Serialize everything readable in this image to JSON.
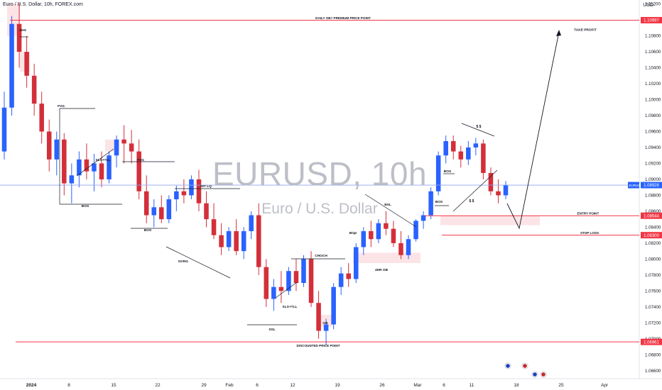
{
  "header": {
    "title": "Euro / U.S. Dollar, 10h, FOREX.com",
    "currency": "USD"
  },
  "watermark": {
    "symbol": "EURUSD, 10h",
    "name": "Euro / U.S. Dollar"
  },
  "colors": {
    "up": "#2962ff",
    "down": "#d32f3a",
    "line": "#f23645",
    "zone": "#fce4e6",
    "current_price_line": "#90a4f2"
  },
  "price_badges": {
    "current": "EURUSD",
    "current_value": "1.08928"
  },
  "chart_data": {
    "type": "candlestick",
    "symbol": "EURUSD",
    "timeframe": "10h",
    "ylim": [
      1.065,
      1.1125
    ],
    "y_ticks": [
      "1.11200",
      "1.11000",
      "1.10800",
      "1.10600",
      "1.10400",
      "1.10200",
      "1.10000",
      "1.09800",
      "1.09600",
      "1.09400",
      "1.09200",
      "1.09000",
      "1.08800",
      "1.08600",
      "1.08400",
      "1.08200",
      "1.08000",
      "1.07800",
      "1.07600",
      "1.07400",
      "1.07200",
      "1.07000",
      "1.06800",
      "1.06600"
    ],
    "x_ticks": [
      "2024",
      "8",
      "15",
      "22",
      "29",
      "Feb",
      "6",
      "12",
      "19",
      "26",
      "Mar",
      "6",
      "11",
      "18",
      "25",
      "Apr"
    ],
    "candles": [
      [
        1.0935,
        1.101,
        1.0925,
        1.099
      ],
      [
        1.099,
        1.1105,
        1.098,
        1.1095
      ],
      [
        1.1095,
        1.1122,
        1.104,
        1.106
      ],
      [
        1.106,
        1.108,
        1.1015,
        1.103
      ],
      [
        1.103,
        1.1045,
        1.098,
        1.0995
      ],
      [
        1.0995,
        1.101,
        1.0945,
        1.096
      ],
      [
        1.096,
        1.0975,
        1.091,
        1.0925
      ],
      [
        1.0925,
        1.096,
        1.0905,
        1.095
      ],
      [
        1.095,
        1.0958,
        1.088,
        1.0895
      ],
      [
        1.0895,
        1.092,
        1.087,
        1.0905
      ],
      [
        1.0905,
        1.0935,
        1.089,
        1.0925
      ],
      [
        1.0925,
        1.0945,
        1.09,
        1.091
      ],
      [
        1.091,
        1.0932,
        1.0885,
        1.092
      ],
      [
        1.092,
        1.0935,
        1.089,
        1.09
      ],
      [
        1.09,
        1.0935,
        1.0895,
        1.093
      ],
      [
        1.093,
        1.0955,
        1.0915,
        1.095
      ],
      [
        1.095,
        1.0968,
        1.092,
        1.0945
      ],
      [
        1.0945,
        1.0962,
        1.092,
        1.0935
      ],
      [
        1.0935,
        1.095,
        1.0875,
        1.0885
      ],
      [
        1.0885,
        1.0905,
        1.0845,
        1.0855
      ],
      [
        1.0855,
        1.0875,
        1.084,
        1.0865
      ],
      [
        1.0865,
        1.088,
        1.0845,
        1.085
      ],
      [
        1.085,
        1.088,
        1.0845,
        1.0875
      ],
      [
        1.0875,
        1.0892,
        1.086,
        1.0885
      ],
      [
        1.0885,
        1.09,
        1.087,
        1.088
      ],
      [
        1.088,
        1.0905,
        1.0875,
        1.09
      ],
      [
        1.09,
        1.0912,
        1.086,
        1.087
      ],
      [
        1.087,
        1.0885,
        1.084,
        1.085
      ],
      [
        1.085,
        1.087,
        1.0825,
        1.083
      ],
      [
        1.083,
        1.0845,
        1.0805,
        1.0815
      ],
      [
        1.0815,
        1.084,
        1.081,
        1.0835
      ],
      [
        1.0835,
        1.085,
        1.0805,
        1.081
      ],
      [
        1.081,
        1.084,
        1.08,
        1.0835
      ],
      [
        1.0835,
        1.086,
        1.0825,
        1.0855
      ],
      [
        1.0855,
        1.087,
        1.078,
        1.079
      ],
      [
        1.079,
        1.08,
        1.074,
        1.075
      ],
      [
        1.075,
        1.0775,
        1.0735,
        1.0765
      ],
      [
        1.0765,
        1.0785,
        1.0745,
        1.076
      ],
      [
        1.076,
        1.079,
        1.0755,
        1.0785
      ],
      [
        1.0785,
        1.08,
        1.076,
        1.077
      ],
      [
        1.077,
        1.0805,
        1.0765,
        1.08
      ],
      [
        1.08,
        1.081,
        1.074,
        1.0745
      ],
      [
        1.0745,
        1.076,
        1.07,
        1.071
      ],
      [
        1.071,
        1.0725,
        1.0692,
        1.0718
      ],
      [
        1.0718,
        1.077,
        1.0712,
        1.0765
      ],
      [
        1.0765,
        1.079,
        1.0755,
        1.0782
      ],
      [
        1.0782,
        1.0795,
        1.0765,
        1.0775
      ],
      [
        1.0775,
        1.082,
        1.077,
        1.0815
      ],
      [
        1.0815,
        1.084,
        1.0805,
        1.0835
      ],
      [
        1.0835,
        1.0848,
        1.0815,
        1.0825
      ],
      [
        1.0825,
        1.085,
        1.082,
        1.0845
      ],
      [
        1.0845,
        1.086,
        1.083,
        1.0838
      ],
      [
        1.0838,
        1.0848,
        1.0815,
        1.082
      ],
      [
        1.082,
        1.0835,
        1.08,
        1.0805
      ],
      [
        1.0805,
        1.083,
        1.08,
        1.0825
      ],
      [
        1.0825,
        1.085,
        1.0822,
        1.0848
      ],
      [
        1.0848,
        1.086,
        1.0838,
        1.0855
      ],
      [
        1.0855,
        1.089,
        1.085,
        1.0885
      ],
      [
        1.0885,
        1.0935,
        1.088,
        1.093
      ],
      [
        1.093,
        1.0955,
        1.092,
        1.0948
      ],
      [
        1.0948,
        1.0955,
        1.0925,
        1.0935
      ],
      [
        1.0935,
        1.0942,
        1.0915,
        1.0925
      ],
      [
        1.0925,
        1.0948,
        1.0918,
        1.094
      ],
      [
        1.094,
        1.0952,
        1.093,
        1.0945
      ],
      [
        1.0945,
        1.095,
        1.09,
        1.0908
      ],
      [
        1.0908,
        1.0915,
        1.088,
        1.0885
      ],
      [
        1.0885,
        1.09,
        1.087,
        1.088
      ],
      [
        1.088,
        1.0898,
        1.0875,
        1.0893
      ]
    ]
  },
  "levels": [
    {
      "label": "DAILY OB+ PREMIUM PRICE POINT",
      "value": "1.10997"
    },
    {
      "label": "ENTRY POINT",
      "value": "1.08544"
    },
    {
      "label": "STOP LOSS",
      "value": "1.08300"
    },
    {
      "label": "DISCOUNTED PRICE POINT",
      "value": "1.06961"
    }
  ],
  "annotations": {
    "take_profit": "TAKE PROFIT",
    "shs": "SHS",
    "fvg1": "FVG",
    "fvg2": "FVG",
    "bos1": "BOS",
    "bos2": "BOS",
    "bos3": "BOS",
    "bos4": "BOS",
    "bos5": "BOS",
    "sls1": "SLS+TLL",
    "sls2": "SLS+TLL",
    "int_lq": "INT LQ",
    "dvrg": "DVRG",
    "choch": "CHOCH",
    "ob": "OB",
    "ssl": "SSL",
    "bsl": "BSL",
    "ob4h": "4HR OB",
    "dollar_top": "$  $",
    "dollar_bottom": "$ $"
  },
  "events": [
    {
      "icon": "flag-eu-icon"
    },
    {
      "icon": "flag-us-icon"
    },
    {
      "icon": "flag-eu-icon"
    },
    {
      "icon": "flag-us-icon"
    }
  ]
}
